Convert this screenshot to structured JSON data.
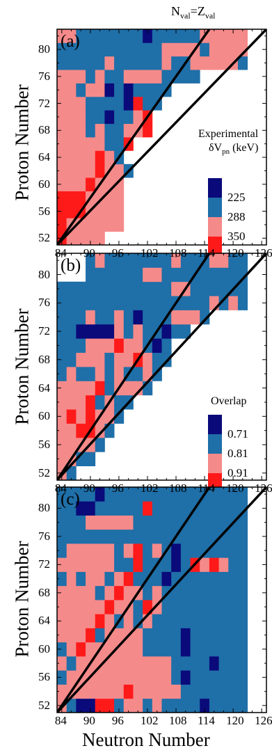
{
  "figure": {
    "top_annotation_main": "N",
    "top_annotation_sub1": "val",
    "top_annotation_eq": "=Z",
    "top_annotation_sub2": "val",
    "xlabel": "Neutron Number"
  },
  "colors": {
    "dark_blue": "#0a0a7a",
    "blue": "#1f6fa8",
    "pink": "#f58a8a",
    "red": "#ff1a1a",
    "frame": "#000000"
  },
  "chart_data": [
    {
      "type": "heatmap",
      "panel_label": "(a)",
      "ylabel": "Proton Number",
      "x_ticks": [
        "84",
        "90",
        "96",
        "102",
        "108",
        "114",
        "120",
        "126"
      ],
      "y_ticks": [
        "52",
        "56",
        "60",
        "64",
        "68",
        "72",
        "76",
        "80"
      ],
      "xlim": [
        83,
        127
      ],
      "ylim": [
        51,
        83
      ],
      "legend_title_line1": "Experimental",
      "legend_title_line2": "δV",
      "legend_title_sub": "pn",
      "legend_title_unit": " (keV)",
      "legend_values": [
        "225",
        "288",
        "350"
      ],
      "grid_origin": [
        84,
        52
      ],
      "grid_step": 2,
      "cell_codes": [
        "RPPPP...............",
        "RPPPPPP.............",
        "RRRPPPP.............",
        "RRRPPPP.............",
        "PPPRPPP.............",
        "PPPPRPPB............",
        "PPPPRPB.............",
        "PPPPPBBR............",
        "PPPBPBBPPR..........",
        "PPPBBDBBPR..........",
        "PPPBBBBDRBB.........",
        "PPBPPDBDBBBB........",
        "PPPBPBBPPPPBBBB.....",
        "BBBBBPBBBBBPBBPPPPPB",
        "BBBBBBBBBBBPPPPBPPPP",
        "PPBBBBBBBDBBBBBPPPPP",
        "...BPBBBBBBBPPPPPPPP",
        "...BDBBBBBBBBBPPPPPP",
        "...BBBBBBBBBBBBBPPPB",
        "...DBBBBBBBBBBBBBBBB",
        "....DBBBBBBBBBBBBBBB",
        "....DBBBBDBBBBBBBBBB",
        "....BBBBBDBBBBBPPBBP",
        ".....BBBBBBBBBBPPBPB"
      ],
      "value_codes": {
        "D": "above 225 (darkest)",
        "B": "225",
        "P": "288",
        "R": "350"
      }
    },
    {
      "type": "heatmap",
      "panel_label": "(b)",
      "ylabel": "Proton Number",
      "x_ticks": [
        "84",
        "90",
        "96",
        "102",
        "108",
        "114",
        "120",
        "126"
      ],
      "y_ticks": [
        "52",
        "56",
        "60",
        "64",
        "68",
        "72",
        "76",
        "80"
      ],
      "xlim": [
        83,
        127
      ],
      "ylim": [
        51,
        83
      ],
      "legend_title_line1": "Overlap",
      "legend_values": [
        "0.71",
        "0.81",
        "0.91"
      ],
      "grid_origin": [
        84,
        52
      ],
      "grid_step": 2,
      "cell_codes": [
        "PB..................",
        "PPBB................",
        "PPPPB...............",
        "PPRRPB..............",
        "PRPRPPB.............",
        "PPPRBPBB............",
        "PPPPRBPPPB..........",
        "BPBBPBPBBPB.........",
        "BBPPPBPPRPBB........",
        "BBBPPPRPPBDB........",
        "BBDDDDPBPBBDBB......",
        "BBBPBBPBDBBBPPPB....",
        "BBBBBBBBBBBBBBBBPBPB",
        "BBBBBBBBBBBBPPBBBBBB",
        "...BBBBBBPPBBBBBBBBB",
        "...BPBBBBBBBPBBBPPBB",
        "....BBBBBPBBBBBBBBBB",
        "....BBBBBBBBBBBBBBBB",
        "......BBBBBBBDDBBBBB",
        "........DDBBBBBBBBBB",
        "..........BBBBBBBBBB"
      ],
      "value_codes": {
        "D": "below 0.71 (darkest)",
        "B": "0.71",
        "P": "0.81",
        "R": "0.91"
      }
    },
    {
      "type": "heatmap",
      "panel_label": "(c)",
      "ylabel": "Proton Number",
      "x_ticks": [
        "84",
        "90",
        "96",
        "102",
        "108",
        "114",
        "120",
        "126"
      ],
      "y_ticks": [
        "52",
        "56",
        "60",
        "64",
        "68",
        "72",
        "76",
        "80"
      ],
      "xlim": [
        83,
        127
      ],
      "ylim": [
        51,
        83
      ],
      "grid_origin": [
        84,
        52
      ],
      "grid_step": 2,
      "cell_codes": [
        "PBDDRRBPPBPBBBBDBBBB",
        "PPPPPPPRPPPPPBBBBBBB",
        "BPPPPPPPPPPPBDBBBBBB",
        "PBPPPPPPPPPPBBBBDBBB",
        "BPRPPPPPPBBBBDBBBBBB",
        "PPPRBPPPPBBBBDBBBBBB",
        "PPPPRPBPBPBBBBBBBBBB",
        "PPPPPRPPBRPBBBBBBBBB",
        "PPPPBPRPPBPBBBBBBBBB",
        "BPBPPBPRBBBDBBBBBBBB",
        "PPPPPPBBRBBBDBRPRPBB",
        "BPPPPPBPRBPBDBBBBBBB",
        "BBBBBBBBBBBBBBBBBBBB",
        "BBBPPPPPBBBBBBBBBBBB",
        "BBDDBBBBBRBBBBBBBBBB",
        "BBBBDBBBBBBBBBBBBBBB",
        "BBBBBBBBBBBBBBBBBBBB",
        "BBBBBBBBBBBBBBBBBBBB",
        "BBBBBBBBBBBBBBBBBBBB",
        "BBBBBBBBBBBBBBBBBBBB",
        "BBBBBBBBBBBBBBBBBBBB",
        "BBBBBBBBBBBBBBBBBBBB",
        "...BBBBBBBBBBBBBBBBB",
        "......BBBBBBBBBBBBBB",
        "........BBBBBBBBBBBB"
      ],
      "value_codes": {
        "D": "darkest bin",
        "B": "second bin",
        "P": "third bin",
        "R": "highest bin"
      }
    }
  ]
}
